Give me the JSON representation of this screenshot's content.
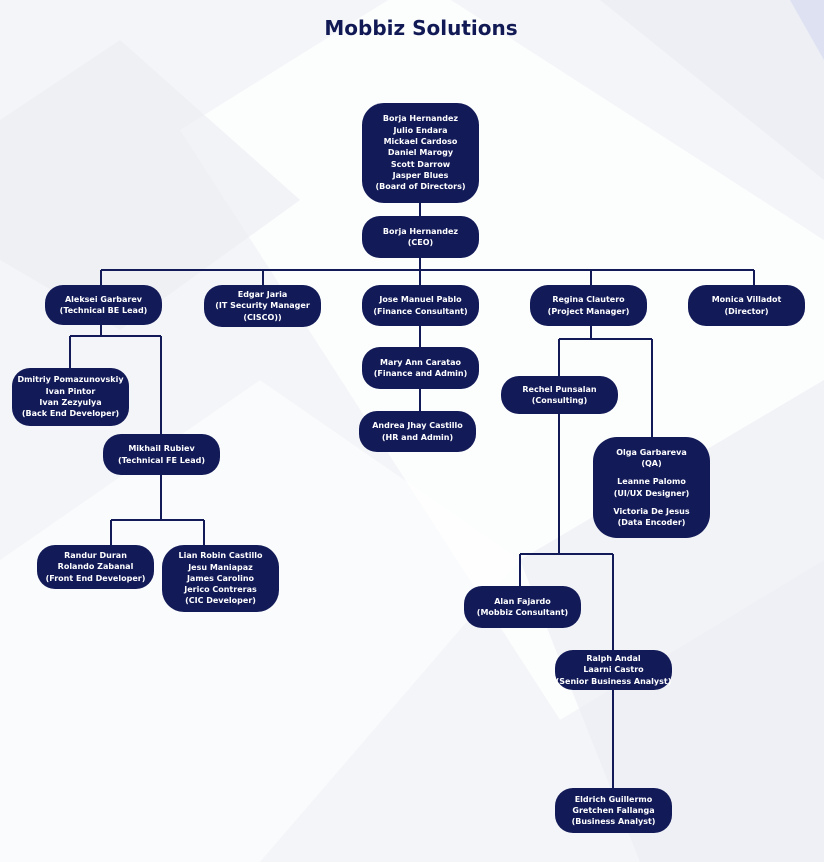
{
  "title": "Mobbiz Solutions",
  "line_color": "#121a58",
  "node_color": "#121a58",
  "title_color": "#121a55",
  "nodes": {
    "board": {
      "lines": [
        "Borja Hernandez",
        "Julio Endara",
        "Mickael Cardoso",
        "Daniel Marogy",
        "Scott Darrow",
        "Jasper Blues",
        "(Board of Directors)"
      ]
    },
    "ceo": {
      "lines": [
        "Borja Hernandez",
        "(CEO)"
      ]
    },
    "be_lead": {
      "lines": [
        "Aleksei Garbarev",
        "(Technical BE Lead)"
      ]
    },
    "it_security": {
      "lines": [
        "Edgar Jaria",
        "(IT Security Manager",
        "(CISCO))"
      ]
    },
    "finance": {
      "lines": [
        "Jose Manuel Pablo",
        "(Finance Consultant)"
      ]
    },
    "pm": {
      "lines": [
        "Regina Clautero",
        "(Project Manager)"
      ]
    },
    "director": {
      "lines": [
        "Monica Villadot",
        "(Director)"
      ]
    },
    "be_dev": {
      "lines": [
        "Dmitriy Pomazunovskiy",
        "Ivan Pintor",
        "Ivan Zezyulya",
        "(Back End Developer)"
      ]
    },
    "fe_lead": {
      "lines": [
        "Mikhail Rubiev",
        "(Technical FE Lead)"
      ]
    },
    "fe_dev": {
      "lines": [
        "Randur Duran",
        "Rolando Zabanal",
        "(Front End Developer)"
      ]
    },
    "cic_dev": {
      "lines": [
        "Lian Robin Castillo",
        "Jesu Maniapaz",
        "James Carolino",
        "Jerico Contreras",
        "(CIC Developer)"
      ]
    },
    "fin_admin": {
      "lines": [
        "Mary Ann Caratao",
        "(Finance and Admin)"
      ]
    },
    "hr_admin": {
      "lines": [
        "Andrea Jhay Castillo",
        "(HR and Admin)"
      ]
    },
    "consulting": {
      "lines": [
        "Rechel Punsalan",
        "(Consulting)"
      ]
    },
    "qa": {
      "lines": [
        "Olga Garbareva",
        "(QA)",
        "",
        "Leanne Palomo",
        "(UI/UX Designer)",
        "",
        "Victoria De Jesus",
        "(Data Encoder)"
      ]
    },
    "mobbiz_consultant": {
      "lines": [
        "Alan Fajardo",
        "(Mobbiz Consultant)"
      ]
    },
    "senior_ba": {
      "lines": [
        "Ralph Andal",
        "Laarni Castro",
        "(Senior Business Analyst)"
      ]
    },
    "ba": {
      "lines": [
        "Eldrich Guillermo",
        "Gretchen Fallanga",
        "(Business Analyst)"
      ]
    }
  }
}
